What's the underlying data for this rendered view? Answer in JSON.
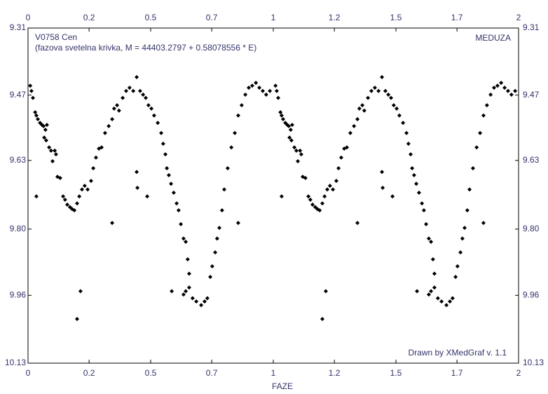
{
  "chart_data": {
    "type": "scatter",
    "title": "V0758 Cen",
    "subtitle": "(fazova svetelna krivka, M = 44403.2797 + 0.58078556 * E)",
    "source": "MEDUZA",
    "credit": "Drawn by XMedGraf v. 1.1",
    "x_label": "FAZE",
    "color": "#000000",
    "xlim": [
      0,
      2
    ],
    "ylim": [
      10.13,
      9.31
    ],
    "xticks": [
      0,
      {
        "value": 0.249,
        "label": "0.2"
      },
      0.5,
      {
        "value": 0.749,
        "label": "0.7"
      },
      1,
      {
        "value": 1.249,
        "label": "1.2"
      },
      1.5,
      {
        "value": 1.749,
        "label": "1.7"
      },
      2
    ],
    "yticks": [
      9.31,
      {
        "value": 9.474,
        "label": "9.47"
      },
      {
        "value": 9.634,
        "label": "9.63"
      },
      {
        "value": 9.802,
        "label": "9.80"
      },
      {
        "value": 9.964,
        "label": "9.96"
      },
      10.13
    ],
    "x": [
      0.009,
      0.014,
      0.02,
      0.029,
      0.034,
      0.04,
      0.049,
      0.057,
      0.063,
      0.071,
      0.077,
      0.066,
      0.074,
      0.086,
      0.094,
      0.1,
      0.109,
      0.114,
      0.12,
      0.131,
      0.143,
      0.151,
      0.16,
      0.171,
      0.18,
      0.189,
      0.2,
      0.209,
      0.22,
      0.231,
      0.243,
      0.257,
      0.266,
      0.277,
      0.289,
      0.3,
      0.314,
      0.329,
      0.343,
      0.351,
      0.363,
      0.371,
      0.386,
      0.4,
      0.414,
      0.429,
      0.443,
      0.457,
      0.469,
      0.48,
      0.491,
      0.503,
      0.514,
      0.529,
      0.543,
      0.551,
      0.56,
      0.566,
      0.574,
      0.583,
      0.594,
      0.606,
      0.614,
      0.623,
      0.634,
      0.643,
      0.651,
      0.657,
      0.643,
      0.634,
      0.657,
      0.671,
      0.686,
      0.706,
      0.72,
      0.731,
      0.743,
      0.751,
      0.763,
      0.771,
      0.78,
      0.791,
      0.8,
      0.814,
      0.829,
      0.843,
      0.857,
      0.871,
      0.886,
      0.9,
      0.914,
      0.929,
      0.943,
      0.957,
      0.971,
      0.986,
      0.443,
      0.446,
      0.486,
      0.343,
      0.214,
      0.2,
      0.034,
      0.857,
      0.586,
      1.009,
      1.014,
      1.02,
      1.029,
      1.034,
      1.04,
      1.049,
      1.057,
      1.063,
      1.071,
      1.077,
      1.066,
      1.074,
      1.086,
      1.094,
      1.1,
      1.109,
      1.114,
      1.12,
      1.131,
      1.143,
      1.151,
      1.16,
      1.171,
      1.18,
      1.189,
      1.2,
      1.209,
      1.22,
      1.231,
      1.243,
      1.257,
      1.266,
      1.277,
      1.289,
      1.3,
      1.314,
      1.329,
      1.343,
      1.351,
      1.363,
      1.371,
      1.386,
      1.4,
      1.414,
      1.429,
      1.443,
      1.457,
      1.469,
      1.48,
      1.491,
      1.503,
      1.514,
      1.529,
      1.543,
      1.551,
      1.56,
      1.566,
      1.574,
      1.583,
      1.594,
      1.606,
      1.614,
      1.623,
      1.634,
      1.643,
      1.651,
      1.657,
      1.643,
      1.634,
      1.657,
      1.671,
      1.686,
      1.706,
      1.72,
      1.731,
      1.743,
      1.751,
      1.763,
      1.771,
      1.78,
      1.791,
      1.8,
      1.814,
      1.829,
      1.843,
      1.857,
      1.871,
      1.886,
      1.9,
      1.914,
      1.929,
      1.943,
      1.957,
      1.971,
      1.986,
      1.443,
      1.446,
      1.486,
      1.343,
      1.214,
      1.2,
      1.034,
      1.857,
      1.586
    ],
    "values": [
      9.451,
      9.464,
      9.481,
      9.516,
      9.524,
      9.533,
      9.542,
      9.547,
      9.55,
      9.559,
      9.547,
      9.578,
      9.585,
      9.602,
      9.61,
      9.636,
      9.61,
      9.619,
      9.674,
      9.677,
      9.722,
      9.73,
      9.742,
      9.748,
      9.753,
      9.756,
      9.739,
      9.722,
      9.705,
      9.696,
      9.705,
      9.684,
      9.653,
      9.627,
      9.605,
      9.602,
      9.567,
      9.55,
      9.533,
      9.507,
      9.499,
      9.512,
      9.481,
      9.464,
      9.456,
      9.464,
      9.43,
      9.464,
      9.473,
      9.481,
      9.499,
      9.507,
      9.524,
      9.542,
      9.567,
      9.593,
      9.619,
      9.653,
      9.67,
      9.691,
      9.713,
      9.739,
      9.756,
      9.79,
      9.825,
      9.833,
      9.876,
      9.911,
      9.954,
      9.962,
      9.945,
      9.971,
      9.979,
      9.988,
      9.979,
      9.971,
      9.919,
      9.893,
      9.859,
      9.825,
      9.799,
      9.756,
      9.705,
      9.653,
      9.602,
      9.567,
      9.524,
      9.499,
      9.473,
      9.456,
      9.451,
      9.444,
      9.456,
      9.464,
      9.473,
      9.464,
      9.662,
      9.701,
      9.722,
      9.787,
      9.954,
      10.022,
      9.722,
      9.787,
      9.954,
      9.451,
      9.464,
      9.481,
      9.516,
      9.524,
      9.533,
      9.542,
      9.547,
      9.55,
      9.559,
      9.547,
      9.578,
      9.585,
      9.602,
      9.61,
      9.636,
      9.61,
      9.619,
      9.674,
      9.677,
      9.722,
      9.73,
      9.742,
      9.748,
      9.753,
      9.756,
      9.739,
      9.722,
      9.705,
      9.696,
      9.705,
      9.684,
      9.653,
      9.627,
      9.605,
      9.602,
      9.567,
      9.55,
      9.533,
      9.507,
      9.499,
      9.512,
      9.481,
      9.464,
      9.456,
      9.464,
      9.43,
      9.464,
      9.473,
      9.481,
      9.499,
      9.507,
      9.524,
      9.542,
      9.567,
      9.593,
      9.619,
      9.653,
      9.67,
      9.691,
      9.713,
      9.739,
      9.756,
      9.79,
      9.825,
      9.833,
      9.876,
      9.911,
      9.954,
      9.962,
      9.945,
      9.971,
      9.979,
      9.988,
      9.979,
      9.971,
      9.919,
      9.893,
      9.859,
      9.825,
      9.799,
      9.756,
      9.705,
      9.653,
      9.602,
      9.567,
      9.524,
      9.499,
      9.473,
      9.456,
      9.451,
      9.444,
      9.456,
      9.464,
      9.473,
      9.464,
      9.662,
      9.701,
      9.722,
      9.787,
      9.954,
      10.022,
      9.722,
      9.787,
      9.954
    ]
  }
}
